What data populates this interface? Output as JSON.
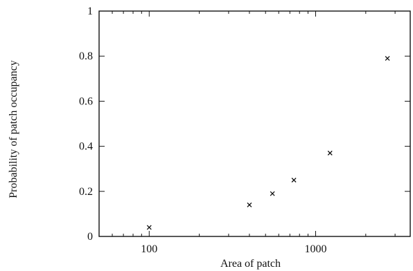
{
  "chart_data": {
    "type": "scatter",
    "title": "",
    "xlabel": "Area of patch",
    "ylabel": "Probability of patch occupancy",
    "x_scale": "log",
    "xlim": [
      50,
      3700
    ],
    "ylim": [
      0,
      1
    ],
    "x_ticks": [
      {
        "value": 100,
        "label": "100"
      },
      {
        "value": 1000,
        "label": "1000"
      }
    ],
    "y_ticks": [
      {
        "value": 0,
        "label": "0"
      },
      {
        "value": 0.2,
        "label": "0.2"
      },
      {
        "value": 0.4,
        "label": "0.4"
      },
      {
        "value": 0.6,
        "label": "0.6"
      },
      {
        "value": 0.8,
        "label": "0.8"
      },
      {
        "value": 1,
        "label": "1"
      }
    ],
    "grid": false,
    "legend": "none",
    "marker": "x",
    "points": [
      {
        "x": 100,
        "y": 0.04
      },
      {
        "x": 400,
        "y": 0.14
      },
      {
        "x": 550,
        "y": 0.19
      },
      {
        "x": 740,
        "y": 0.25
      },
      {
        "x": 1220,
        "y": 0.37
      },
      {
        "x": 2700,
        "y": 0.79
      }
    ]
  }
}
